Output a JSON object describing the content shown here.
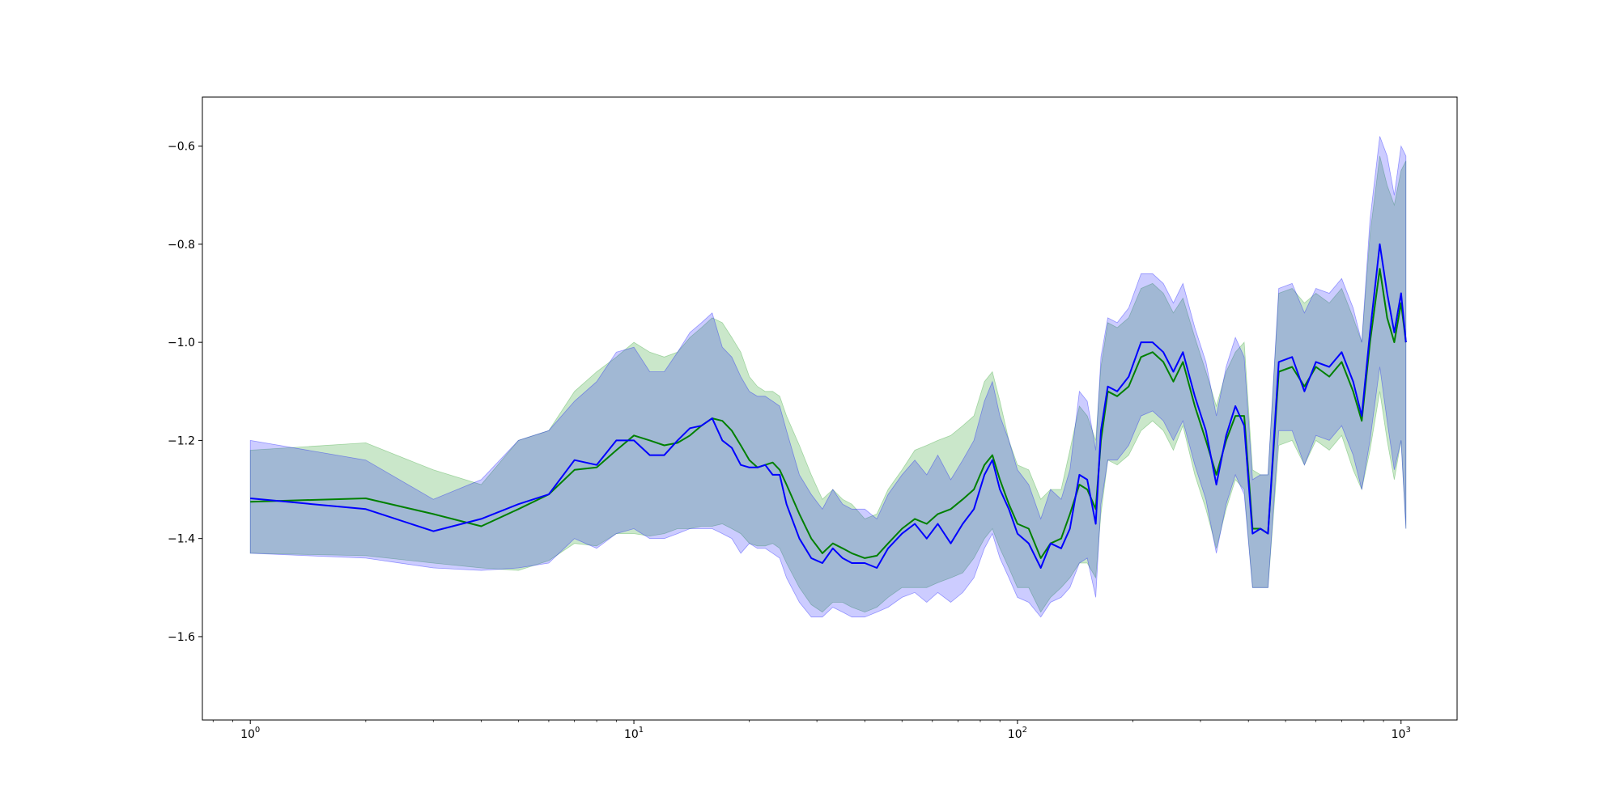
{
  "chart_data": {
    "type": "line",
    "title": "",
    "xlabel": "",
    "ylabel": "",
    "x_scale": "log",
    "xlim": [
      0.75,
      1400
    ],
    "ylim": [
      -1.77,
      -0.5
    ],
    "grid": false,
    "legend": "none",
    "x_ticks": [
      {
        "value": 1,
        "base": "10",
        "exp": "0"
      },
      {
        "value": 10,
        "base": "10",
        "exp": "1"
      },
      {
        "value": 100,
        "base": "10",
        "exp": "2"
      },
      {
        "value": 1000,
        "base": "10",
        "exp": "3"
      }
    ],
    "y_ticks": [
      {
        "value": -0.6,
        "label": "−0.6"
      },
      {
        "value": -0.8,
        "label": "−0.8"
      },
      {
        "value": -1.0,
        "label": "−1.0"
      },
      {
        "value": -1.2,
        "label": "−1.2"
      },
      {
        "value": -1.4,
        "label": "−1.4"
      },
      {
        "value": -1.6,
        "label": "−1.6"
      }
    ],
    "series": [
      {
        "color": "#008000",
        "band_color": "#2ca02c",
        "band_opacity": 0.25,
        "points": [
          [
            1,
            -1.325,
            -1.43,
            -1.22
          ],
          [
            2,
            -1.318,
            -1.435,
            -1.205
          ],
          [
            3,
            -1.35,
            -1.45,
            -1.26
          ],
          [
            4,
            -1.375,
            -1.46,
            -1.29
          ],
          [
            5,
            -1.34,
            -1.465,
            -1.2
          ],
          [
            6,
            -1.31,
            -1.445,
            -1.18
          ],
          [
            7,
            -1.26,
            -1.41,
            -1.1
          ],
          [
            8,
            -1.255,
            -1.415,
            -1.06
          ],
          [
            9,
            -1.22,
            -1.39,
            -1.03
          ],
          [
            10,
            -1.19,
            -1.39,
            -1.0
          ],
          [
            11,
            -1.2,
            -1.395,
            -1.02
          ],
          [
            12,
            -1.21,
            -1.39,
            -1.03
          ],
          [
            13,
            -1.205,
            -1.38,
            -1.02
          ],
          [
            14,
            -1.19,
            -1.38,
            -0.99
          ],
          [
            15,
            -1.17,
            -1.375,
            -0.97
          ],
          [
            16,
            -1.155,
            -1.375,
            -0.95
          ],
          [
            17,
            -1.16,
            -1.37,
            -0.96
          ],
          [
            18,
            -1.18,
            -1.38,
            -0.99
          ],
          [
            19,
            -1.21,
            -1.39,
            -1.02
          ],
          [
            20,
            -1.24,
            -1.41,
            -1.07
          ],
          [
            21,
            -1.255,
            -1.415,
            -1.09
          ],
          [
            22,
            -1.25,
            -1.415,
            -1.1
          ],
          [
            23,
            -1.245,
            -1.41,
            -1.1
          ],
          [
            24,
            -1.26,
            -1.42,
            -1.11
          ],
          [
            25,
            -1.29,
            -1.45,
            -1.15
          ],
          [
            27,
            -1.35,
            -1.5,
            -1.21
          ],
          [
            29,
            -1.4,
            -1.535,
            -1.27
          ],
          [
            31,
            -1.43,
            -1.55,
            -1.32
          ],
          [
            33,
            -1.41,
            -1.53,
            -1.3
          ],
          [
            35,
            -1.42,
            -1.53,
            -1.32
          ],
          [
            37,
            -1.43,
            -1.54,
            -1.33
          ],
          [
            40,
            -1.44,
            -1.55,
            -1.36
          ],
          [
            43,
            -1.435,
            -1.54,
            -1.35
          ],
          [
            46,
            -1.41,
            -1.52,
            -1.3
          ],
          [
            50,
            -1.38,
            -1.5,
            -1.26
          ],
          [
            54,
            -1.36,
            -1.5,
            -1.22
          ],
          [
            58,
            -1.37,
            -1.5,
            -1.21
          ],
          [
            62,
            -1.35,
            -1.49,
            -1.2
          ],
          [
            67,
            -1.34,
            -1.48,
            -1.19
          ],
          [
            72,
            -1.32,
            -1.47,
            -1.17
          ],
          [
            77,
            -1.3,
            -1.44,
            -1.15
          ],
          [
            82,
            -1.25,
            -1.4,
            -1.08
          ],
          [
            86,
            -1.23,
            -1.38,
            -1.06
          ],
          [
            90,
            -1.28,
            -1.42,
            -1.12
          ],
          [
            95,
            -1.33,
            -1.46,
            -1.2
          ],
          [
            100,
            -1.37,
            -1.5,
            -1.25
          ],
          [
            107,
            -1.38,
            -1.5,
            -1.26
          ],
          [
            115,
            -1.44,
            -1.55,
            -1.32
          ],
          [
            122,
            -1.41,
            -1.52,
            -1.3
          ],
          [
            130,
            -1.4,
            -1.5,
            -1.3
          ],
          [
            137,
            -1.35,
            -1.48,
            -1.22
          ],
          [
            145,
            -1.29,
            -1.45,
            -1.13
          ],
          [
            152,
            -1.3,
            -1.45,
            -1.15
          ],
          [
            160,
            -1.34,
            -1.48,
            -1.2
          ],
          [
            165,
            -1.2,
            -1.35,
            -1.05
          ],
          [
            172,
            -1.1,
            -1.24,
            -0.96
          ],
          [
            182,
            -1.11,
            -1.25,
            -0.97
          ],
          [
            195,
            -1.09,
            -1.23,
            -0.95
          ],
          [
            210,
            -1.03,
            -1.18,
            -0.89
          ],
          [
            225,
            -1.02,
            -1.16,
            -0.88
          ],
          [
            240,
            -1.04,
            -1.18,
            -0.9
          ],
          [
            255,
            -1.08,
            -1.22,
            -0.94
          ],
          [
            270,
            -1.04,
            -1.17,
            -0.91
          ],
          [
            290,
            -1.13,
            -1.27,
            -0.99
          ],
          [
            310,
            -1.2,
            -1.34,
            -1.06
          ],
          [
            330,
            -1.27,
            -1.42,
            -1.13
          ],
          [
            350,
            -1.2,
            -1.34,
            -1.06
          ],
          [
            370,
            -1.15,
            -1.28,
            -1.02
          ],
          [
            390,
            -1.15,
            -1.3,
            -1.0
          ],
          [
            410,
            -1.38,
            -1.5,
            -1.26
          ],
          [
            430,
            -1.38,
            -1.5,
            -1.27
          ],
          [
            450,
            -1.39,
            -1.5,
            -1.27
          ],
          [
            480,
            -1.06,
            -1.21,
            -0.9
          ],
          [
            520,
            -1.05,
            -1.2,
            -0.89
          ],
          [
            560,
            -1.09,
            -1.25,
            -0.92
          ],
          [
            600,
            -1.05,
            -1.2,
            -0.9
          ],
          [
            650,
            -1.07,
            -1.22,
            -0.92
          ],
          [
            700,
            -1.04,
            -1.19,
            -0.89
          ],
          [
            750,
            -1.1,
            -1.26,
            -0.95
          ],
          [
            790,
            -1.16,
            -1.3,
            -1.0
          ],
          [
            830,
            -1.0,
            -1.22,
            -0.78
          ],
          [
            880,
            -0.85,
            -1.1,
            -0.62
          ],
          [
            920,
            -0.95,
            -1.2,
            -0.68
          ],
          [
            960,
            -1.0,
            -1.28,
            -0.72
          ],
          [
            1000,
            -0.92,
            -1.2,
            -0.65
          ],
          [
            1030,
            -1.0,
            -1.38,
            -0.63
          ]
        ]
      },
      {
        "color": "#0000ff",
        "band_color": "#0000ff",
        "band_opacity": 0.2,
        "points": [
          [
            1,
            -1.318,
            -1.43,
            -1.2
          ],
          [
            2,
            -1.34,
            -1.44,
            -1.24
          ],
          [
            3,
            -1.385,
            -1.46,
            -1.32
          ],
          [
            4,
            -1.36,
            -1.465,
            -1.28
          ],
          [
            5,
            -1.33,
            -1.46,
            -1.2
          ],
          [
            6,
            -1.31,
            -1.45,
            -1.18
          ],
          [
            7,
            -1.24,
            -1.4,
            -1.12
          ],
          [
            8,
            -1.25,
            -1.42,
            -1.08
          ],
          [
            9,
            -1.2,
            -1.39,
            -1.02
          ],
          [
            10,
            -1.2,
            -1.38,
            -1.01
          ],
          [
            11,
            -1.23,
            -1.4,
            -1.06
          ],
          [
            12,
            -1.23,
            -1.4,
            -1.06
          ],
          [
            13,
            -1.2,
            -1.39,
            -1.02
          ],
          [
            14,
            -1.175,
            -1.38,
            -0.98
          ],
          [
            15,
            -1.17,
            -1.38,
            -0.96
          ],
          [
            16,
            -1.155,
            -1.38,
            -0.94
          ],
          [
            17,
            -1.2,
            -1.39,
            -1.01
          ],
          [
            18,
            -1.215,
            -1.4,
            -1.03
          ],
          [
            19,
            -1.25,
            -1.43,
            -1.07
          ],
          [
            20,
            -1.255,
            -1.41,
            -1.1
          ],
          [
            21,
            -1.255,
            -1.42,
            -1.11
          ],
          [
            22,
            -1.25,
            -1.42,
            -1.11
          ],
          [
            23,
            -1.27,
            -1.43,
            -1.12
          ],
          [
            24,
            -1.27,
            -1.44,
            -1.13
          ],
          [
            25,
            -1.33,
            -1.48,
            -1.18
          ],
          [
            27,
            -1.4,
            -1.53,
            -1.27
          ],
          [
            29,
            -1.44,
            -1.56,
            -1.31
          ],
          [
            31,
            -1.45,
            -1.56,
            -1.34
          ],
          [
            33,
            -1.42,
            -1.54,
            -1.3
          ],
          [
            35,
            -1.44,
            -1.55,
            -1.33
          ],
          [
            37,
            -1.45,
            -1.56,
            -1.34
          ],
          [
            40,
            -1.45,
            -1.56,
            -1.34
          ],
          [
            43,
            -1.46,
            -1.55,
            -1.36
          ],
          [
            46,
            -1.42,
            -1.54,
            -1.31
          ],
          [
            50,
            -1.39,
            -1.52,
            -1.27
          ],
          [
            54,
            -1.37,
            -1.51,
            -1.24
          ],
          [
            58,
            -1.4,
            -1.53,
            -1.27
          ],
          [
            62,
            -1.37,
            -1.51,
            -1.23
          ],
          [
            67,
            -1.41,
            -1.53,
            -1.28
          ],
          [
            72,
            -1.37,
            -1.51,
            -1.24
          ],
          [
            77,
            -1.34,
            -1.48,
            -1.2
          ],
          [
            82,
            -1.27,
            -1.42,
            -1.12
          ],
          [
            86,
            -1.24,
            -1.39,
            -1.08
          ],
          [
            90,
            -1.3,
            -1.44,
            -1.15
          ],
          [
            95,
            -1.34,
            -1.48,
            -1.2
          ],
          [
            100,
            -1.39,
            -1.52,
            -1.26
          ],
          [
            107,
            -1.41,
            -1.53,
            -1.29
          ],
          [
            115,
            -1.46,
            -1.56,
            -1.36
          ],
          [
            122,
            -1.41,
            -1.53,
            -1.3
          ],
          [
            130,
            -1.42,
            -1.52,
            -1.32
          ],
          [
            137,
            -1.38,
            -1.5,
            -1.26
          ],
          [
            145,
            -1.27,
            -1.45,
            -1.1
          ],
          [
            152,
            -1.28,
            -1.44,
            -1.12
          ],
          [
            160,
            -1.37,
            -1.52,
            -1.22
          ],
          [
            165,
            -1.18,
            -1.33,
            -1.03
          ],
          [
            172,
            -1.09,
            -1.24,
            -0.95
          ],
          [
            182,
            -1.1,
            -1.24,
            -0.96
          ],
          [
            195,
            -1.07,
            -1.21,
            -0.93
          ],
          [
            210,
            -1.0,
            -1.15,
            -0.86
          ],
          [
            225,
            -1.0,
            -1.14,
            -0.86
          ],
          [
            240,
            -1.02,
            -1.16,
            -0.88
          ],
          [
            255,
            -1.06,
            -1.2,
            -0.92
          ],
          [
            270,
            -1.02,
            -1.16,
            -0.88
          ],
          [
            290,
            -1.11,
            -1.25,
            -0.97
          ],
          [
            310,
            -1.18,
            -1.32,
            -1.04
          ],
          [
            330,
            -1.29,
            -1.43,
            -1.15
          ],
          [
            350,
            -1.19,
            -1.33,
            -1.05
          ],
          [
            370,
            -1.13,
            -1.27,
            -0.99
          ],
          [
            390,
            -1.17,
            -1.31,
            -1.03
          ],
          [
            410,
            -1.39,
            -1.5,
            -1.28
          ],
          [
            430,
            -1.38,
            -1.5,
            -1.27
          ],
          [
            450,
            -1.39,
            -1.5,
            -1.27
          ],
          [
            480,
            -1.04,
            -1.18,
            -0.89
          ],
          [
            520,
            -1.03,
            -1.18,
            -0.88
          ],
          [
            560,
            -1.1,
            -1.25,
            -0.94
          ],
          [
            600,
            -1.04,
            -1.19,
            -0.89
          ],
          [
            650,
            -1.05,
            -1.2,
            -0.9
          ],
          [
            700,
            -1.02,
            -1.17,
            -0.87
          ],
          [
            750,
            -1.08,
            -1.23,
            -0.93
          ],
          [
            790,
            -1.15,
            -1.3,
            -1.0
          ],
          [
            830,
            -0.98,
            -1.2,
            -0.75
          ],
          [
            880,
            -0.8,
            -1.05,
            -0.58
          ],
          [
            920,
            -0.9,
            -1.16,
            -0.62
          ],
          [
            960,
            -0.98,
            -1.26,
            -0.7
          ],
          [
            1000,
            -0.9,
            -1.2,
            -0.6
          ],
          [
            1030,
            -1.0,
            -1.38,
            -0.62
          ]
        ]
      }
    ]
  }
}
